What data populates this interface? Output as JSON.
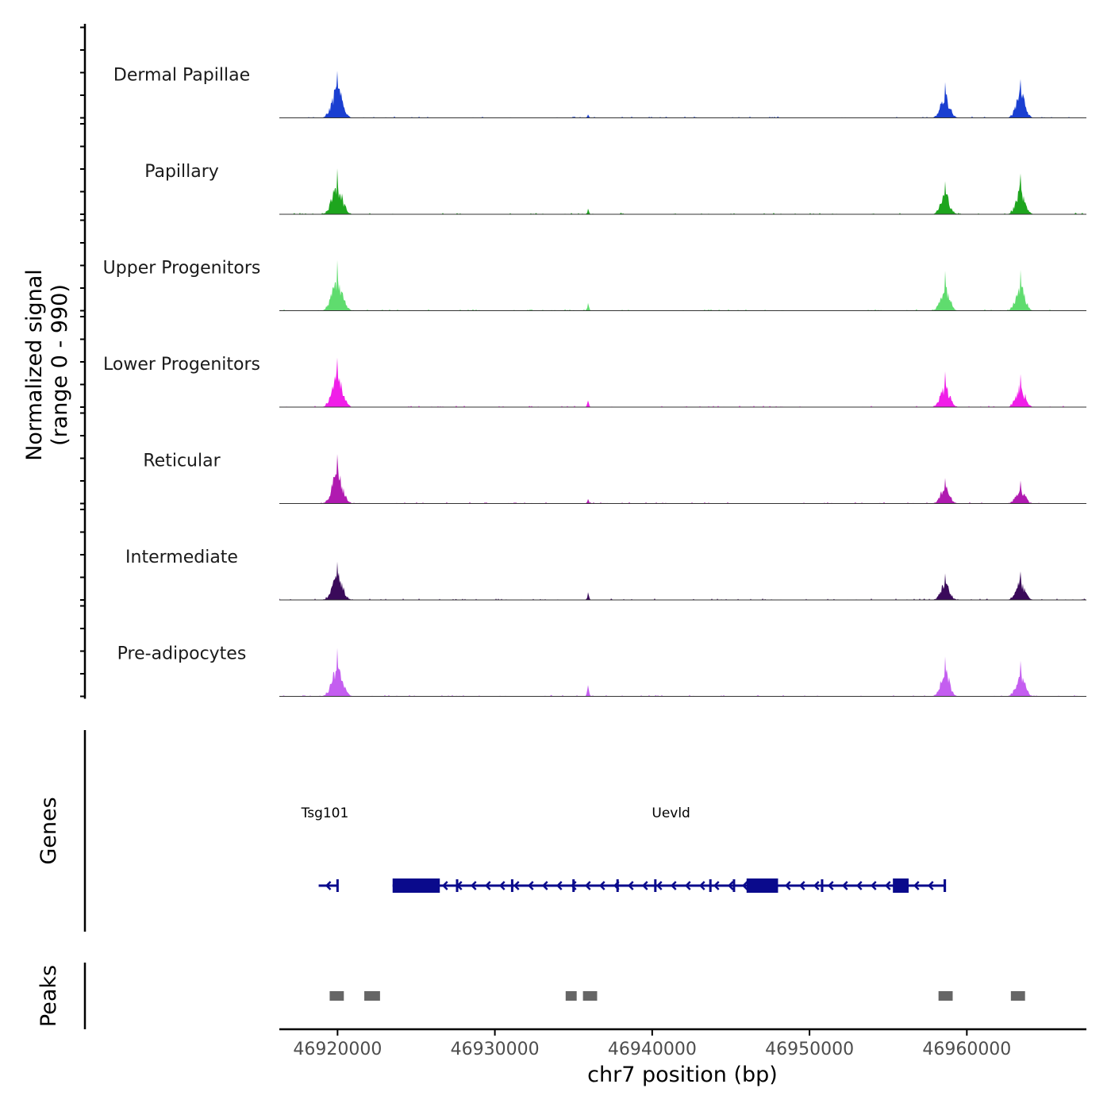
{
  "chart_data": {
    "type": "area",
    "title": "",
    "signal_ylabel": "Normalized signal",
    "signal_ylabel_range": "(range 0 - 990)",
    "ylim": [
      0,
      990
    ],
    "xlabel": "chr7 position (bp)",
    "xlim": [
      46916300,
      46967600
    ],
    "x_ticks": [
      46920000,
      46930000,
      46940000,
      46950000,
      46960000
    ],
    "x_tick_labels": [
      "46920000",
      "46930000",
      "46940000",
      "46950000",
      "46960000"
    ],
    "peak_centers": [
      46920000,
      46935900,
      46958600,
      46963400
    ],
    "tracks": [
      {
        "name": "Dermal Papillae",
        "color": "#1a3fd1",
        "peaks": [
          920,
          65,
          700,
          760
        ]
      },
      {
        "name": "Papillary",
        "color": "#1ea51e",
        "peaks": [
          900,
          110,
          650,
          800
        ]
      },
      {
        "name": "Upper Progenitors",
        "color": "#5fdc6e",
        "peaks": [
          990,
          150,
          780,
          800
        ]
      },
      {
        "name": "Lower Progenitors",
        "color": "#f01ee8",
        "peaks": [
          970,
          130,
          700,
          650
        ]
      },
      {
        "name": "Reticular",
        "color": "#b01ab0",
        "peaks": [
          970,
          90,
          500,
          450
        ]
      },
      {
        "name": "Intermediate",
        "color": "#3a0a5a",
        "peaks": [
          750,
          150,
          520,
          560
        ]
      },
      {
        "name": "Pre-adipocytes",
        "color": "#c45ef0",
        "peaks": [
          950,
          220,
          780,
          700
        ]
      }
    ],
    "genes_label": "Genes",
    "genes": [
      {
        "name": "Tsg101",
        "strand": "-",
        "start": 46918800,
        "end": 46920000,
        "label_x": 46919200
      },
      {
        "name": "Uevld",
        "strand": "-",
        "start": 46923500,
        "end": 46958600,
        "label_x": 46941200,
        "exons": [
          [
            46923500,
            46926500
          ],
          [
            46946000,
            46948000
          ],
          [
            46955300,
            46956300
          ]
        ],
        "small_exons": [
          46927600,
          46931100,
          46935000,
          46937800,
          46940200,
          46943700,
          46945200,
          46950800,
          46958600
        ]
      }
    ],
    "peaks_label": "Peaks",
    "peaks": [
      [
        46919500,
        46920400
      ],
      [
        46921700,
        46922700
      ],
      [
        46934500,
        46935200
      ],
      [
        46935600,
        46936500
      ],
      [
        46958200,
        46959100
      ],
      [
        46962800,
        46963700
      ]
    ]
  }
}
